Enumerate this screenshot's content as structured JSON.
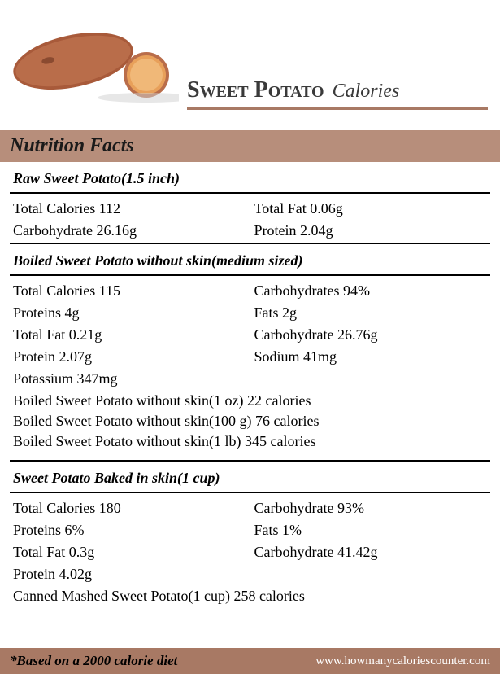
{
  "title_main": "Sweet Potato",
  "title_sub": "Calories",
  "section_heading": "Nutrition Facts",
  "colors": {
    "banner_bg": "#b78e7b",
    "accent": "#a87964",
    "text": "#000000",
    "footer_text": "#ffffff"
  },
  "groups": [
    {
      "heading": "Raw Sweet Potato(1.5 inch)",
      "rows": [
        [
          "Total Calories 112",
          "Total Fat 0.06g"
        ],
        [
          "Carbohydrate 26.16g",
          "Protein 2.04g"
        ]
      ],
      "extras": []
    },
    {
      "heading": "Boiled Sweet Potato without skin(medium sized)",
      "rows": [
        [
          "Total Calories 115",
          "Carbohydrates 94%"
        ],
        [
          "Proteins 4g",
          "Fats 2g"
        ],
        [
          "Total Fat 0.21g",
          "Carbohydrate 26.76g"
        ],
        [
          "Protein 2.07g",
          "Sodium 41mg"
        ],
        [
          "Potassium 347mg",
          ""
        ]
      ],
      "extras": [
        "Boiled Sweet Potato without skin(1 oz) 22 calories",
        "Boiled Sweet Potato without skin(100 g) 76 calories",
        "Boiled Sweet Potato without skin(1 lb) 345 calories"
      ]
    },
    {
      "heading": "Sweet Potato Baked in skin(1 cup)",
      "rows": [
        [
          "Total Calories 180",
          "Carbohydrate 93%"
        ],
        [
          "Proteins 6%",
          "Fats 1%"
        ],
        [
          "Total Fat 0.3g",
          "Carbohydrate 41.42g"
        ],
        [
          "Protein 4.02g",
          ""
        ]
      ],
      "extras": [
        "Canned Mashed Sweet Potato(1 cup) 258 calories"
      ]
    }
  ],
  "footer_note": "*Based on a 2000 calorie diet",
  "footer_url": "www.howmanycaloriescounter.com"
}
